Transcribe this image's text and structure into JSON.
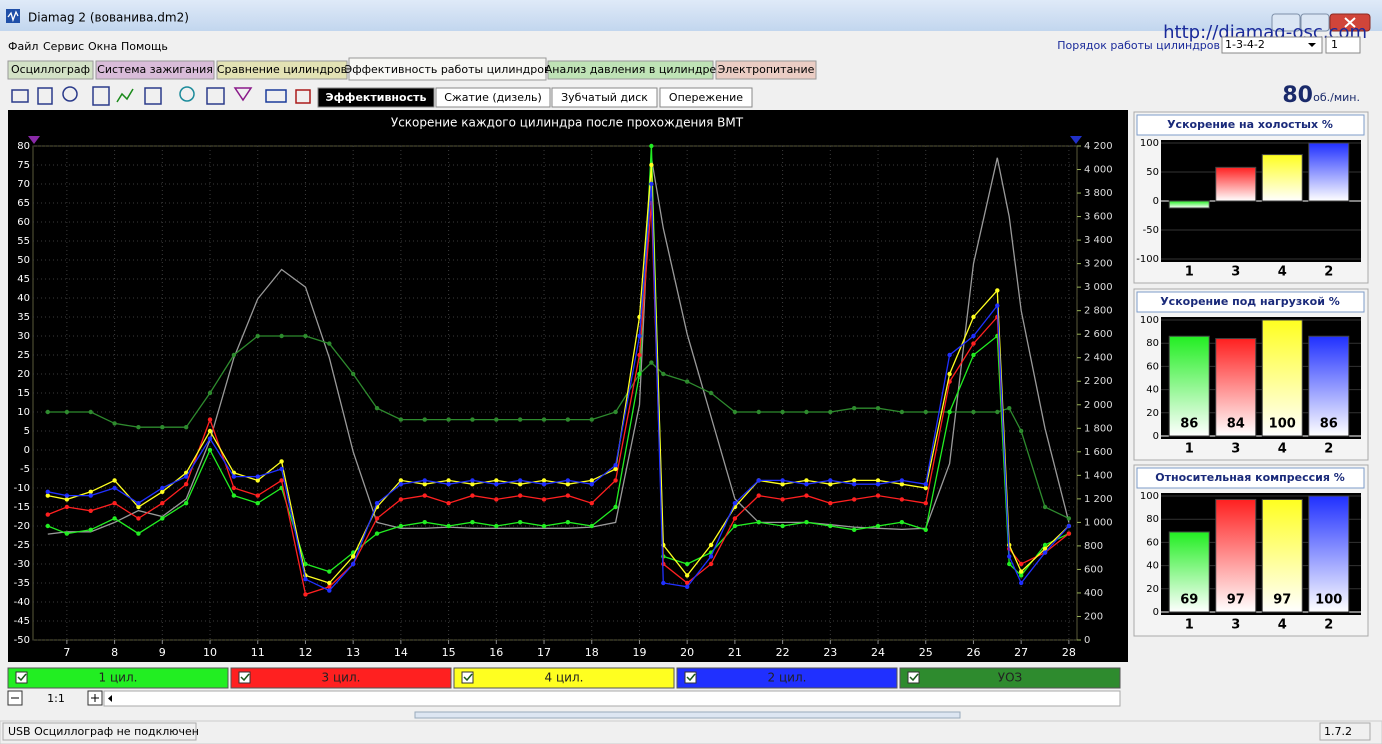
{
  "window": {
    "title": "Diamag 2 (вованива.dm2)",
    "url": "http://diamag-osc.com"
  },
  "menu": [
    "Файл",
    "Сервис",
    "Окна",
    "Помощь"
  ],
  "firing_order": {
    "label": "Порядок работы цилиндров",
    "value": "1-3-4-2",
    "cylinder": "1"
  },
  "tabs": {
    "active": 3,
    "items": [
      {
        "label": "Осциллограф",
        "color": "#d3e2c6"
      },
      {
        "label": "Система зажигания",
        "color": "#d9bcd9"
      },
      {
        "label": "Сравнение цилиндров",
        "color": "#e3e2b4"
      },
      {
        "label": "Эффективность работы цилиндров",
        "color": "#f7f7f4"
      },
      {
        "label": "Анализ давления в цилиндре",
        "color": "#bfe3b6"
      },
      {
        "label": "Электропитание",
        "color": "#ebcdc4"
      }
    ]
  },
  "subtabs": {
    "active": 0,
    "items": [
      "Эффективность",
      "Сжатие (дизель)",
      "Зубчатый диск",
      "Опережение"
    ]
  },
  "rpm": {
    "value": 80,
    "unit": "об./мин."
  },
  "chart_data": [
    {
      "type": "line",
      "title": "Ускорение каждого цилиндра после прохождения ВМТ",
      "x": [
        6.6,
        7,
        7.5,
        8,
        8.5,
        9,
        9.5,
        10,
        10.5,
        11,
        11.5,
        12,
        12.5,
        13,
        13.5,
        14,
        14.5,
        15,
        15.5,
        16,
        16.5,
        17,
        17.5,
        18,
        18.5,
        19,
        19.25,
        19.5,
        20,
        20.5,
        21,
        21.5,
        22,
        22.5,
        23,
        23.5,
        24,
        24.5,
        25,
        25.5,
        26,
        26.5,
        26.75,
        27,
        27.5,
        28
      ],
      "xlim": [
        6.29,
        28.17
      ],
      "xticks": [
        7,
        8,
        9,
        10,
        11,
        12,
        13,
        14,
        15,
        16,
        17,
        18,
        19,
        20,
        21,
        22,
        23,
        24,
        25,
        26,
        27,
        28
      ],
      "ylim": [
        -50,
        80
      ],
      "yticks": [
        -50,
        -45,
        -40,
        -35,
        -30,
        -25,
        -20,
        -15,
        -10,
        -5,
        0,
        5,
        10,
        15,
        20,
        25,
        30,
        35,
        40,
        45,
        50,
        55,
        60,
        65,
        70,
        75,
        80
      ],
      "y2lim": [
        0,
        4200
      ],
      "y2ticks": [
        0,
        200,
        400,
        600,
        800,
        {
          "value": 1000,
          "label": "1 000"
        },
        {
          "value": 1200,
          "label": "1 200"
        },
        {
          "value": 1400,
          "label": "1 400"
        },
        {
          "value": 1600,
          "label": "1 600"
        },
        {
          "value": 1800,
          "label": "1 800"
        },
        {
          "value": 2000,
          "label": "2 000"
        },
        {
          "value": 2200,
          "label": "2 200"
        },
        {
          "value": 2400,
          "label": "2 400"
        },
        {
          "value": 2600,
          "label": "2 600"
        },
        {
          "value": 2800,
          "label": "2 800"
        },
        {
          "value": 3000,
          "label": "3 000"
        },
        {
          "value": 3200,
          "label": "3 200"
        },
        {
          "value": 3400,
          "label": "3 400"
        },
        {
          "value": 3600,
          "label": "3 600"
        },
        {
          "value": 3800,
          "label": "3 800"
        },
        {
          "value": 4000,
          "label": "4 000"
        },
        {
          "value": 4200,
          "label": "4 200"
        }
      ],
      "grid": true,
      "series": [
        {
          "color": "#9a9a9a",
          "axis": "y2",
          "values": [
            900,
            920,
            920,
            1000,
            1100,
            1050,
            1200,
            1700,
            2400,
            2900,
            3150,
            3000,
            2400,
            1600,
            1000,
            950,
            950,
            960,
            950,
            950,
            950,
            950,
            950,
            960,
            1000,
            2000,
            4100,
            3500,
            2600,
            1900,
            1200,
            1000,
            1000,
            1000,
            980,
            960,
            950,
            940,
            950,
            1500,
            3200,
            4100,
            3600,
            2800,
            1800,
            1000
          ]
        },
        {
          "name": "УОЗ",
          "color": "#2e8b2e",
          "markers": true,
          "values": [
            10,
            10,
            10,
            7,
            6,
            6,
            6,
            15,
            25,
            30,
            30,
            30,
            28,
            20,
            11,
            8,
            8,
            8,
            8,
            8,
            8,
            8,
            8,
            8,
            10,
            20,
            23,
            20,
            18,
            15,
            10,
            10,
            10,
            10,
            10,
            11,
            11,
            10,
            10,
            10,
            10,
            10,
            11,
            5,
            -15,
            -18
          ]
        },
        {
          "name": "1 цил.",
          "color": "#22ee22",
          "markers": true,
          "values": [
            -20,
            -22,
            -21,
            -18,
            -22,
            -18,
            -14,
            0,
            -12,
            -14,
            -10,
            -30,
            -32,
            -27,
            -22,
            -20,
            -19,
            -20,
            -19,
            -20,
            -19,
            -20,
            -19,
            -20,
            -15,
            20,
            80,
            -28,
            -30,
            -27,
            -20,
            -19,
            -20,
            -19,
            -20,
            -21,
            -20,
            -19,
            -21,
            10,
            25,
            30,
            -30,
            -33,
            -25,
            -22
          ]
        },
        {
          "name": "3 цил.",
          "color": "#ff2020",
          "markers": true,
          "values": [
            -17,
            -15,
            -16,
            -14,
            -18,
            -14,
            -9,
            8,
            -10,
            -12,
            -8,
            -38,
            -36,
            -30,
            -18,
            -13,
            -12,
            -14,
            -12,
            -13,
            -12,
            -13,
            -12,
            -14,
            -8,
            25,
            65,
            -30,
            -35,
            -30,
            -18,
            -12,
            -13,
            -12,
            -14,
            -13,
            -12,
            -13,
            -14,
            18,
            28,
            35,
            -26,
            -30,
            -27,
            -22
          ]
        },
        {
          "name": "4 цил.",
          "color": "#ffff20",
          "markers": true,
          "values": [
            -12,
            -13,
            -11,
            -8,
            -15,
            -11,
            -6,
            5,
            -6,
            -8,
            -3,
            -33,
            -35,
            -28,
            -15,
            -8,
            -9,
            -8,
            -9,
            -8,
            -9,
            -8,
            -9,
            -8,
            -5,
            35,
            75,
            -25,
            -33,
            -25,
            -15,
            -8,
            -9,
            -8,
            -9,
            -8,
            -8,
            -9,
            -10,
            20,
            35,
            42,
            -25,
            -32,
            -26,
            -20
          ]
        },
        {
          "name": "2 цил.",
          "color": "#2030ff",
          "markers": true,
          "values": [
            -11,
            -12,
            -12,
            -10,
            -14,
            -10,
            -7,
            3,
            -7,
            -7,
            -5,
            -34,
            -37,
            -30,
            -14,
            -9,
            -8,
            -9,
            -8,
            -9,
            -8,
            -9,
            -8,
            -9,
            -4,
            30,
            70,
            -35,
            -36,
            -28,
            -14,
            -8,
            -8,
            -9,
            -8,
            -9,
            -9,
            -8,
            -9,
            25,
            30,
            38,
            -28,
            -35,
            -27,
            -20
          ]
        }
      ]
    },
    {
      "type": "bar",
      "title": "Ускорение на холостых %",
      "categories": [
        "1",
        "3",
        "4",
        "2"
      ],
      "values": [
        -12,
        58,
        80,
        100
      ],
      "colors": [
        "#22ee22",
        "#ff2020",
        "#ffff20",
        "#2030ff"
      ],
      "ylim": [
        -100,
        100
      ],
      "yticks": [
        -100,
        -50,
        0,
        50,
        100
      ],
      "grid": true
    },
    {
      "type": "bar",
      "title": "Ускорение под нагрузкой %",
      "categories": [
        "1",
        "3",
        "4",
        "2"
      ],
      "values": [
        86,
        84,
        100,
        86
      ],
      "colors": [
        "#22ee22",
        "#ff2020",
        "#ffff20",
        "#2030ff"
      ],
      "ylim": [
        0,
        100
      ],
      "yticks": [
        0,
        20,
        40,
        60,
        80,
        100
      ],
      "grid": true,
      "show_values": true
    },
    {
      "type": "bar",
      "title": "Относительная компрессия %",
      "categories": [
        "1",
        "3",
        "4",
        "2"
      ],
      "values": [
        69,
        97,
        97,
        100
      ],
      "colors": [
        "#22ee22",
        "#ff2020",
        "#ffff20",
        "#2030ff"
      ],
      "ylim": [
        0,
        100
      ],
      "yticks": [
        0,
        20,
        40,
        60,
        80,
        100
      ],
      "grid": true,
      "show_values": true
    }
  ],
  "zoom": "1:1",
  "status": {
    "message": "USB Осциллограф не подключен",
    "version": "1.7.2"
  }
}
